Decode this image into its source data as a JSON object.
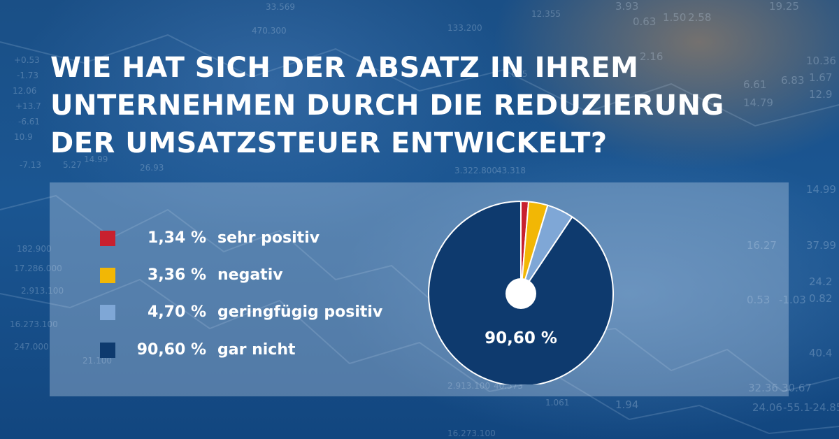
{
  "headline": {
    "line1": "WIE HAT SICH DER ABSATZ IN IHREM",
    "line2": "UNTERNEHMEN DURCH DIE REDUZIERUNG",
    "line3": "DER UMSATZSTEUER ENTWICKELT?"
  },
  "chart_data": {
    "type": "pie",
    "title": "WIE HAT SICH DER ABSATZ IN IHREM UNTERNEHMEN DURCH DIE REDUZIERUNG DER UMSATZSTEUER ENTWICKELT?",
    "legend_position": "left",
    "slices": [
      {
        "label": "sehr positiv",
        "value": 1.34,
        "display": "1,34 %",
        "color": "#c8202f"
      },
      {
        "label": "negativ",
        "value": 3.36,
        "display": "3,36 %",
        "color": "#f2b705"
      },
      {
        "label": "geringfügig positiv",
        "value": 4.7,
        "display": "4,70 %",
        "color": "#7fa7d6"
      },
      {
        "label": "gar nicht",
        "value": 90.6,
        "display": "90,60 %",
        "color": "#0e3a6e"
      }
    ],
    "data_labels": [
      {
        "slice": "gar nicht",
        "text": "90,60 %"
      }
    ]
  }
}
